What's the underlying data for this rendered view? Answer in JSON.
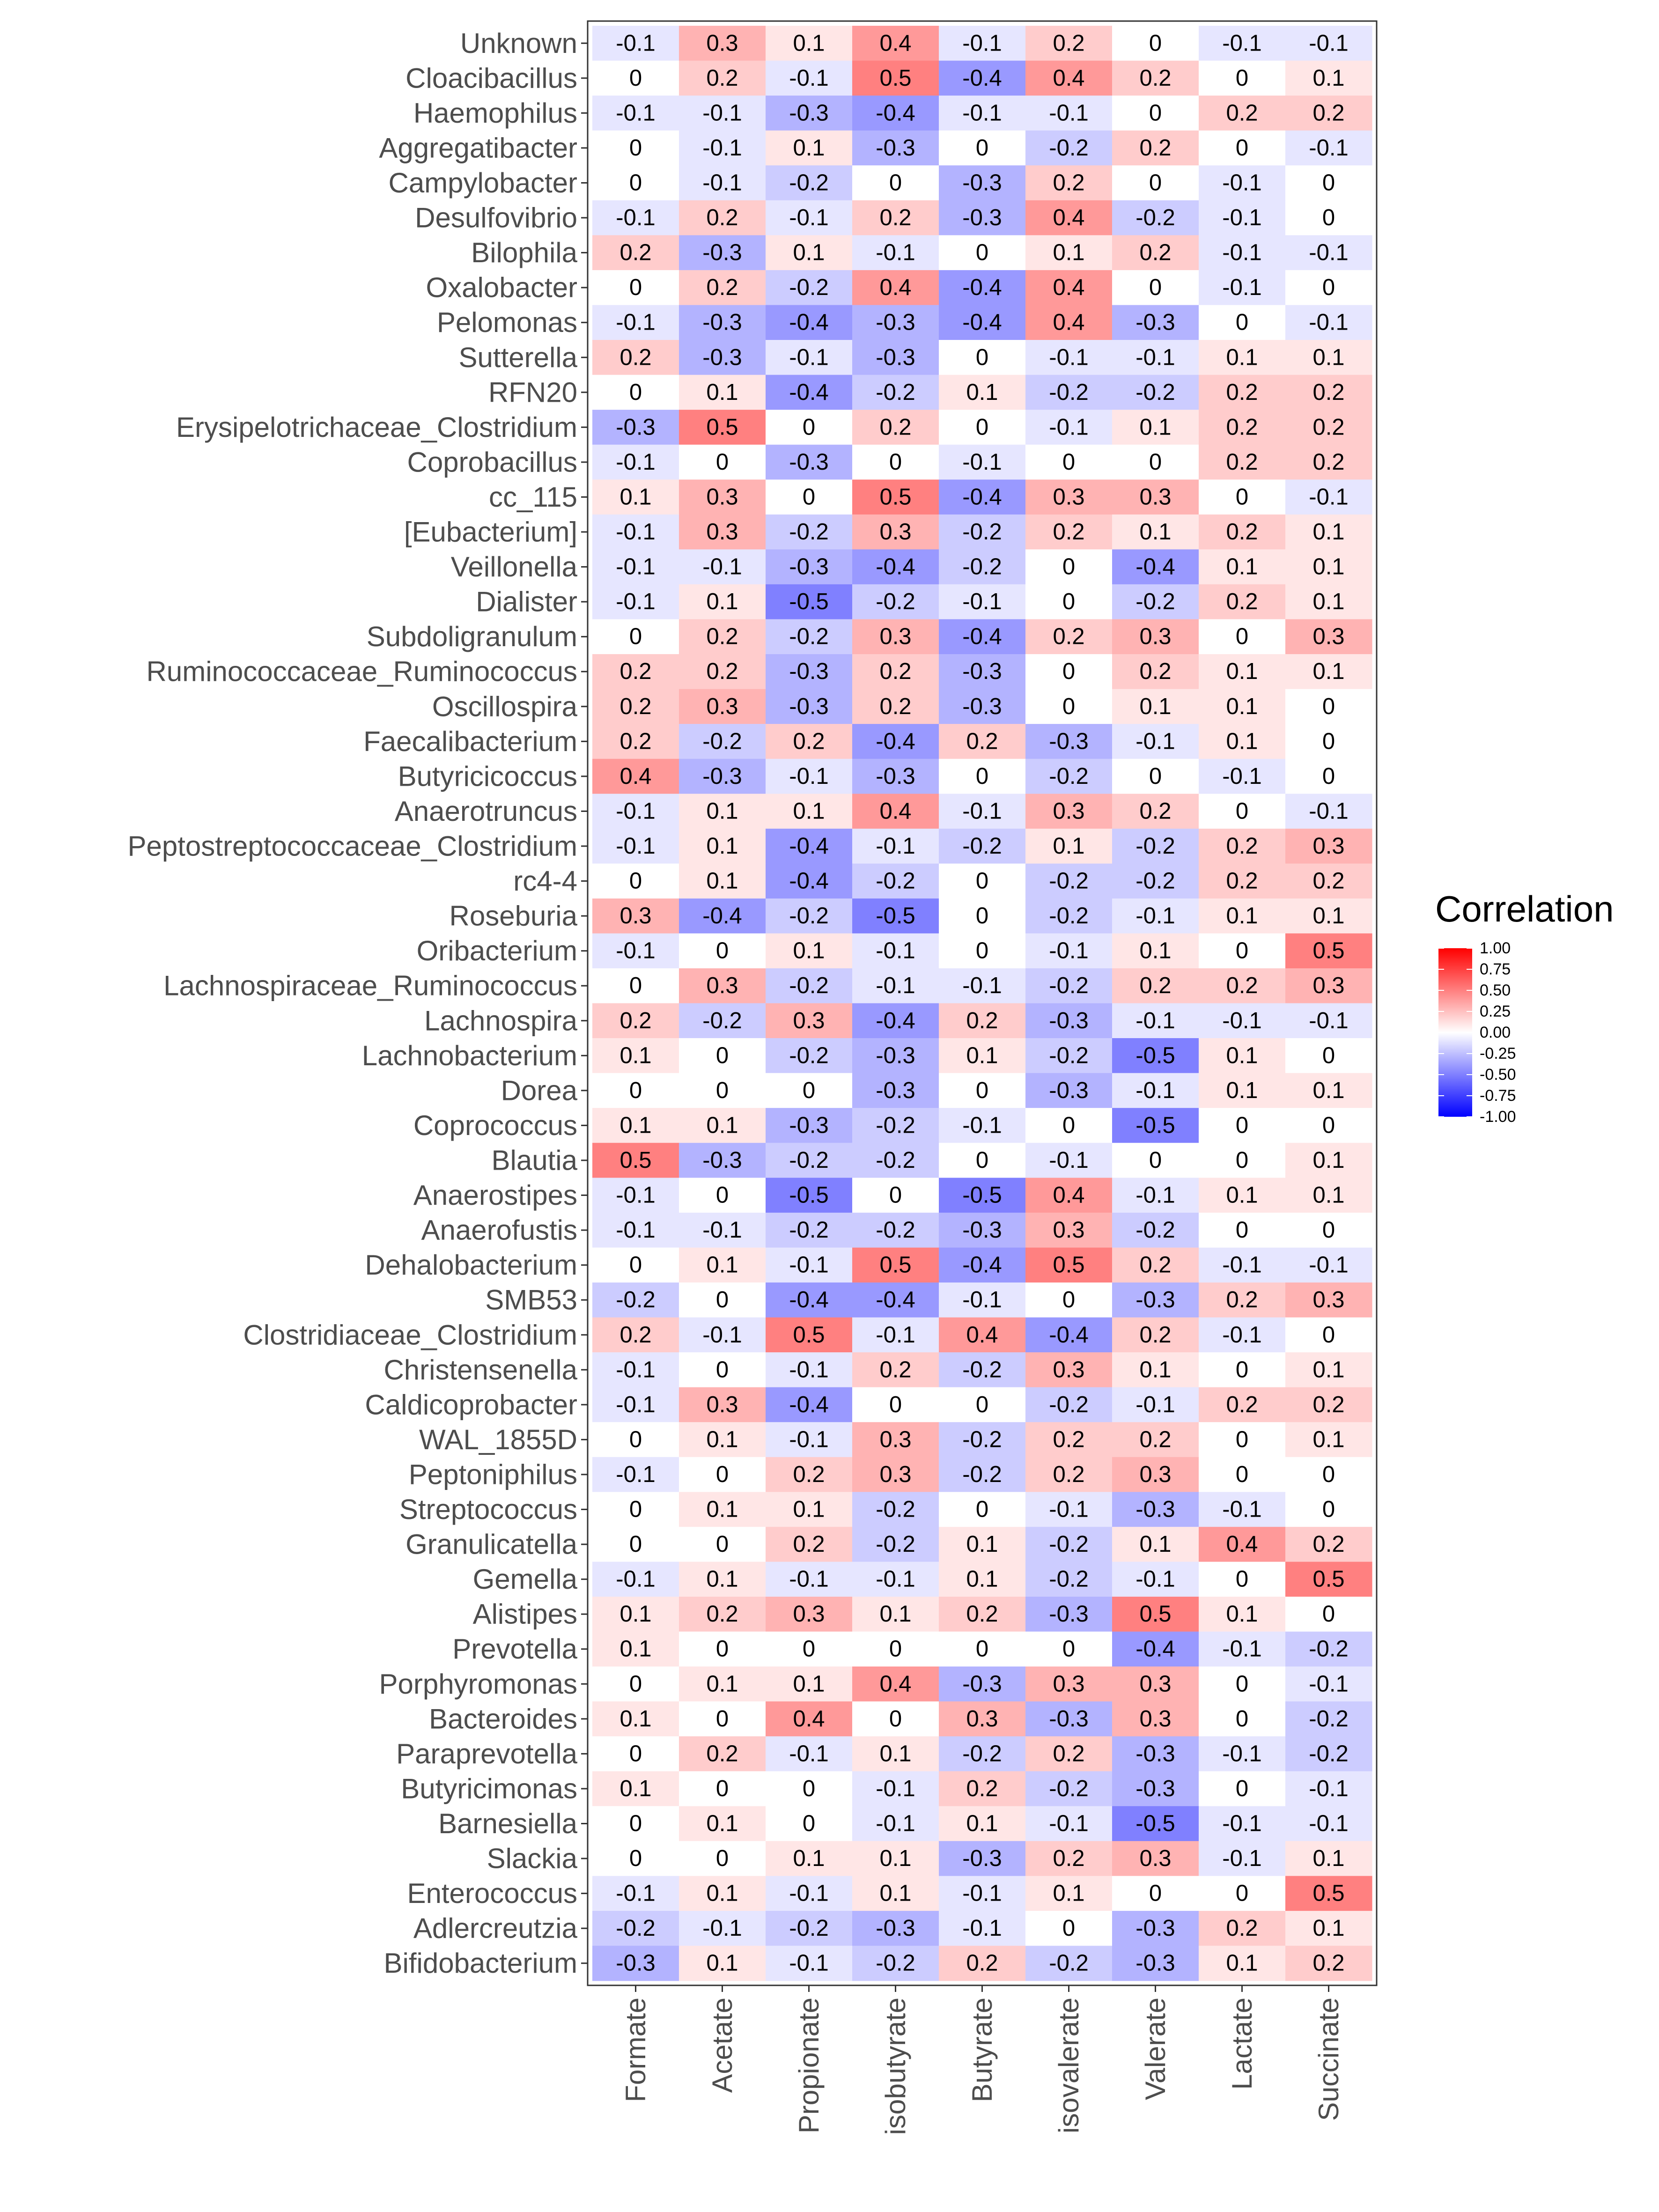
{
  "chart_data": {
    "type": "heatmap",
    "x_categories": [
      "Formate",
      "Acetate",
      "Propionate",
      "isobutyrate",
      "Butyrate",
      "isovalerate",
      "Valerate",
      "Lactate",
      "Succinate"
    ],
    "y_categories": [
      "Unknown",
      "Cloacibacillus",
      "Haemophilus",
      "Aggregatibacter",
      "Campylobacter",
      "Desulfovibrio",
      "Bilophila",
      "Oxalobacter",
      "Pelomonas",
      "Sutterella",
      "RFN20",
      "Erysipelotrichaceae_Clostridium",
      "Coprobacillus",
      "cc_115",
      "[Eubacterium]",
      "Veillonella",
      "Dialister",
      "Subdoligranulum",
      "Ruminococcaceae_Ruminococcus",
      "Oscillospira",
      "Faecalibacterium",
      "Butyricicoccus",
      "Anaerotruncus",
      "Peptostreptococcaceae_Clostridium",
      "rc4-4",
      "Roseburia",
      "Oribacterium",
      "Lachnospiraceae_Ruminococcus",
      "Lachnospira",
      "Lachnobacterium",
      "Dorea",
      "Coprococcus",
      "Blautia",
      "Anaerostipes",
      "Anaerofustis",
      "Dehalobacterium",
      "SMB53",
      "Clostridiaceae_Clostridium",
      "Christensenella",
      "Caldicoprobacter",
      "WAL_1855D",
      "Peptoniphilus",
      "Streptococcus",
      "Granulicatella",
      "Gemella",
      "Alistipes",
      "Prevotella",
      "Porphyromonas",
      "Bacteroides",
      "Paraprevotella",
      "Butyricimonas",
      "Barnesiella",
      "Slackia",
      "Enterococcus",
      "Adlercreutzia",
      "Bifidobacterium"
    ],
    "values": [
      [
        -0.1,
        0.3,
        0.1,
        0.4,
        -0.1,
        0.2,
        0,
        -0.1,
        -0.1
      ],
      [
        0,
        0.2,
        -0.1,
        0.5,
        -0.4,
        0.4,
        0.2,
        0,
        0.1
      ],
      [
        -0.1,
        -0.1,
        -0.3,
        -0.4,
        -0.1,
        -0.1,
        0,
        0.2,
        0.2
      ],
      [
        0,
        -0.1,
        0.1,
        -0.3,
        0,
        -0.2,
        0.2,
        0,
        -0.1
      ],
      [
        0,
        -0.1,
        -0.2,
        0,
        -0.3,
        0.2,
        0,
        -0.1,
        0
      ],
      [
        -0.1,
        0.2,
        -0.1,
        0.2,
        -0.3,
        0.4,
        -0.2,
        -0.1,
        0
      ],
      [
        0.2,
        -0.3,
        0.1,
        -0.1,
        0,
        0.1,
        0.2,
        -0.1,
        -0.1
      ],
      [
        0,
        0.2,
        -0.2,
        0.4,
        -0.4,
        0.4,
        0,
        -0.1,
        0
      ],
      [
        -0.1,
        -0.3,
        -0.4,
        -0.3,
        -0.4,
        0.4,
        -0.3,
        0,
        -0.1
      ],
      [
        0.2,
        -0.3,
        -0.1,
        -0.3,
        0,
        -0.1,
        -0.1,
        0.1,
        0.1
      ],
      [
        0,
        0.1,
        -0.4,
        -0.2,
        0.1,
        -0.2,
        -0.2,
        0.2,
        0.2
      ],
      [
        -0.3,
        0.5,
        0,
        0.2,
        0,
        -0.1,
        0.1,
        0.2,
        0.2
      ],
      [
        -0.1,
        0,
        -0.3,
        0,
        -0.1,
        0,
        0,
        0.2,
        0.2
      ],
      [
        0.1,
        0.3,
        0,
        0.5,
        -0.4,
        0.3,
        0.3,
        0,
        -0.1
      ],
      [
        -0.1,
        0.3,
        -0.2,
        0.3,
        -0.2,
        0.2,
        0.1,
        0.2,
        0.1
      ],
      [
        -0.1,
        -0.1,
        -0.3,
        -0.4,
        -0.2,
        0,
        -0.4,
        0.1,
        0.1
      ],
      [
        -0.1,
        0.1,
        -0.5,
        -0.2,
        -0.1,
        0,
        -0.2,
        0.2,
        0.1
      ],
      [
        0,
        0.2,
        -0.2,
        0.3,
        -0.4,
        0.2,
        0.3,
        0,
        0.3
      ],
      [
        0.2,
        0.2,
        -0.3,
        0.2,
        -0.3,
        0,
        0.2,
        0.1,
        0.1
      ],
      [
        0.2,
        0.3,
        -0.3,
        0.2,
        -0.3,
        0,
        0.1,
        0.1,
        0
      ],
      [
        0.2,
        -0.2,
        0.2,
        -0.4,
        0.2,
        -0.3,
        -0.1,
        0.1,
        0
      ],
      [
        0.4,
        -0.3,
        -0.1,
        -0.3,
        0,
        -0.2,
        0,
        -0.1,
        0
      ],
      [
        -0.1,
        0.1,
        0.1,
        0.4,
        -0.1,
        0.3,
        0.2,
        0,
        -0.1
      ],
      [
        -0.1,
        0.1,
        -0.4,
        -0.1,
        -0.2,
        0.1,
        -0.2,
        0.2,
        0.3
      ],
      [
        0,
        0.1,
        -0.4,
        -0.2,
        0,
        -0.2,
        -0.2,
        0.2,
        0.2
      ],
      [
        0.3,
        -0.4,
        -0.2,
        -0.5,
        0,
        -0.2,
        -0.1,
        0.1,
        0.1
      ],
      [
        -0.1,
        0,
        0.1,
        -0.1,
        0,
        -0.1,
        0.1,
        0,
        0.5
      ],
      [
        0,
        0.3,
        -0.2,
        -0.1,
        -0.1,
        -0.2,
        0.2,
        0.2,
        0.3
      ],
      [
        0.2,
        -0.2,
        0.3,
        -0.4,
        0.2,
        -0.3,
        -0.1,
        -0.1,
        -0.1
      ],
      [
        0.1,
        0,
        -0.2,
        -0.3,
        0.1,
        -0.2,
        -0.5,
        0.1,
        0
      ],
      [
        0,
        0,
        0,
        -0.3,
        0,
        -0.3,
        -0.1,
        0.1,
        0.1
      ],
      [
        0.1,
        0.1,
        -0.3,
        -0.2,
        -0.1,
        0,
        -0.5,
        0,
        0
      ],
      [
        0.5,
        -0.3,
        -0.2,
        -0.2,
        0,
        -0.1,
        0,
        0,
        0.1
      ],
      [
        -0.1,
        0,
        -0.5,
        0,
        -0.5,
        0.4,
        -0.1,
        0.1,
        0.1
      ],
      [
        -0.1,
        -0.1,
        -0.2,
        -0.2,
        -0.3,
        0.3,
        -0.2,
        0,
        0
      ],
      [
        0,
        0.1,
        -0.1,
        0.5,
        -0.4,
        0.5,
        0.2,
        -0.1,
        -0.1
      ],
      [
        -0.2,
        0,
        -0.4,
        -0.4,
        -0.1,
        0,
        -0.3,
        0.2,
        0.3
      ],
      [
        0.2,
        -0.1,
        0.5,
        -0.1,
        0.4,
        -0.4,
        0.2,
        -0.1,
        0
      ],
      [
        -0.1,
        0,
        -0.1,
        0.2,
        -0.2,
        0.3,
        0.1,
        0,
        0.1
      ],
      [
        -0.1,
        0.3,
        -0.4,
        0,
        0,
        -0.2,
        -0.1,
        0.2,
        0.2
      ],
      [
        0,
        0.1,
        -0.1,
        0.3,
        -0.2,
        0.2,
        0.2,
        0,
        0.1
      ],
      [
        -0.1,
        0,
        0.2,
        0.3,
        -0.2,
        0.2,
        0.3,
        0,
        0
      ],
      [
        0,
        0.1,
        0.1,
        -0.2,
        0,
        -0.1,
        -0.3,
        -0.1,
        0
      ],
      [
        0,
        0,
        0.2,
        -0.2,
        0.1,
        -0.2,
        0.1,
        0.4,
        0.2
      ],
      [
        -0.1,
        0.1,
        -0.1,
        -0.1,
        0.1,
        -0.2,
        -0.1,
        0,
        0.5
      ],
      [
        0.1,
        0.2,
        0.3,
        0.1,
        0.2,
        -0.3,
        0.5,
        0.1,
        0
      ],
      [
        0.1,
        0,
        0,
        0,
        0,
        0,
        -0.4,
        -0.1,
        -0.2
      ],
      [
        0,
        0.1,
        0.1,
        0.4,
        -0.3,
        0.3,
        0.3,
        0,
        -0.1
      ],
      [
        0.1,
        0,
        0.4,
        0,
        0.3,
        -0.3,
        0.3,
        0,
        -0.2
      ],
      [
        0,
        0.2,
        -0.1,
        0.1,
        -0.2,
        0.2,
        -0.3,
        -0.1,
        -0.2
      ],
      [
        0.1,
        0,
        0,
        -0.1,
        0.2,
        -0.2,
        -0.3,
        0,
        -0.1
      ],
      [
        0,
        0.1,
        0,
        -0.1,
        0.1,
        -0.1,
        -0.5,
        -0.1,
        -0.1
      ],
      [
        0,
        0,
        0.1,
        0.1,
        -0.3,
        0.2,
        0.3,
        -0.1,
        0.1
      ],
      [
        -0.1,
        0.1,
        -0.1,
        0.1,
        -0.1,
        0.1,
        0,
        0,
        0.5
      ],
      [
        -0.2,
        -0.1,
        -0.2,
        -0.3,
        -0.1,
        0,
        -0.3,
        0.2,
        0.1
      ],
      [
        -0.3,
        0.1,
        -0.1,
        -0.2,
        0.2,
        -0.2,
        -0.3,
        0.1,
        0.2
      ]
    ],
    "legend": {
      "title": "Correlation",
      "ticks": [
        "1.00",
        "0.75",
        "0.50",
        "0.25",
        "0.00",
        "-0.25",
        "-0.50",
        "-0.75",
        "-1.00"
      ],
      "range": [
        -1,
        1
      ],
      "low_color": "#0000FF",
      "mid_color": "#FFFFFF",
      "high_color": "#FF0000",
      "placement": "right"
    },
    "grid": false,
    "panel_border": true
  }
}
